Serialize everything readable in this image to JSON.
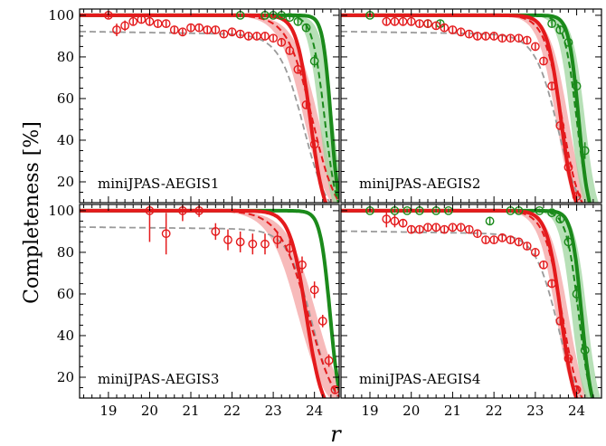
{
  "figure": {
    "ylabel": "Completeness [%]",
    "xlabel": "r"
  },
  "colors": {
    "red": "#e41a1c",
    "red_band": "#f4a3a3",
    "green": "#1b8a1b",
    "green_band": "#9fd59f",
    "gray": "#9a9a9a"
  },
  "chart_data": [
    {
      "type": "line",
      "panel": "miniJPAS-AEGIS1",
      "label": "miniJPAS-AEGIS1",
      "xlim": [
        18.3,
        24.6
      ],
      "ylim": [
        10,
        103
      ],
      "xticks": [
        19,
        20,
        21,
        22,
        23,
        24
      ],
      "yticks": [
        20,
        40,
        60,
        80,
        100
      ],
      "red_points": [
        {
          "x": 19.0,
          "y": 100,
          "err": 1.5
        },
        {
          "x": 19.2,
          "y": 93,
          "err": 3
        },
        {
          "x": 19.4,
          "y": 95,
          "err": 2.5
        },
        {
          "x": 19.6,
          "y": 97,
          "err": 1.5
        },
        {
          "x": 19.8,
          "y": 98,
          "err": 1.5
        },
        {
          "x": 20.0,
          "y": 97,
          "err": 2
        },
        {
          "x": 20.2,
          "y": 96,
          "err": 1.5
        },
        {
          "x": 20.4,
          "y": 96,
          "err": 1.5
        },
        {
          "x": 20.6,
          "y": 93,
          "err": 1.5
        },
        {
          "x": 20.8,
          "y": 92,
          "err": 1.5
        },
        {
          "x": 21.0,
          "y": 94,
          "err": 1.5
        },
        {
          "x": 21.2,
          "y": 94,
          "err": 1.5
        },
        {
          "x": 21.4,
          "y": 93,
          "err": 1.5
        },
        {
          "x": 21.6,
          "y": 93,
          "err": 1.5
        },
        {
          "x": 21.8,
          "y": 91,
          "err": 1.5
        },
        {
          "x": 22.0,
          "y": 92,
          "err": 1.5
        },
        {
          "x": 22.2,
          "y": 91,
          "err": 1.5
        },
        {
          "x": 22.4,
          "y": 90,
          "err": 1.5
        },
        {
          "x": 22.6,
          "y": 90,
          "err": 1.5
        },
        {
          "x": 22.8,
          "y": 90,
          "err": 1.5
        },
        {
          "x": 23.0,
          "y": 89,
          "err": 1.5
        },
        {
          "x": 23.2,
          "y": 87,
          "err": 1.5
        },
        {
          "x": 23.4,
          "y": 83,
          "err": 1.5
        },
        {
          "x": 23.6,
          "y": 74,
          "err": 2
        },
        {
          "x": 23.8,
          "y": 57,
          "err": 2
        },
        {
          "x": 24.0,
          "y": 38,
          "err": 2.5
        }
      ],
      "green_points": [
        {
          "x": 22.2,
          "y": 100,
          "err": 1
        },
        {
          "x": 22.8,
          "y": 100,
          "err": 1
        },
        {
          "x": 23.0,
          "y": 100,
          "err": 1
        },
        {
          "x": 23.2,
          "y": 100,
          "err": 1
        },
        {
          "x": 23.4,
          "y": 99,
          "err": 1
        },
        {
          "x": 23.6,
          "y": 97,
          "err": 1.5
        },
        {
          "x": 23.8,
          "y": 94,
          "err": 2
        },
        {
          "x": 24.0,
          "y": 78,
          "err": 3
        }
      ],
      "red_fit": {
        "m50": 23.9,
        "w": 0.17
      },
      "red_dash": {
        "m50": 23.95,
        "w": 0.3
      },
      "red_band": {
        "m50_lo": 23.75,
        "m50_hi": 24.1,
        "w": 0.3
      },
      "green_fit": {
        "m50": 24.4,
        "w": 0.1
      },
      "green_dash": {
        "m50": 24.25,
        "w": 0.15
      },
      "green_band": {
        "m50_lo": 24.12,
        "m50_hi": 24.45,
        "w": 0.15
      },
      "gray_dash": {
        "top": 92,
        "slope": 1.5,
        "m50": 23.75,
        "w": 0.3
      }
    },
    {
      "type": "line",
      "panel": "miniJPAS-AEGIS2",
      "label": "miniJPAS-AEGIS2",
      "xlim": [
        18.3,
        24.6
      ],
      "ylim": [
        10,
        103
      ],
      "xticks": [
        19,
        20,
        21,
        22,
        23,
        24
      ],
      "yticks": [
        20,
        40,
        60,
        80,
        100
      ],
      "red_points": [
        {
          "x": 19.4,
          "y": 97,
          "err": 1.5
        },
        {
          "x": 19.6,
          "y": 97,
          "err": 1.5
        },
        {
          "x": 19.8,
          "y": 97,
          "err": 1.5
        },
        {
          "x": 20.0,
          "y": 97,
          "err": 1.5
        },
        {
          "x": 20.2,
          "y": 96,
          "err": 1.5
        },
        {
          "x": 20.4,
          "y": 96,
          "err": 1.5
        },
        {
          "x": 20.6,
          "y": 95,
          "err": 1.5
        },
        {
          "x": 20.8,
          "y": 94,
          "err": 1.5
        },
        {
          "x": 21.0,
          "y": 93,
          "err": 1.5
        },
        {
          "x": 21.2,
          "y": 92,
          "err": 1.5
        },
        {
          "x": 21.4,
          "y": 91,
          "err": 1.5
        },
        {
          "x": 21.6,
          "y": 90,
          "err": 1.5
        },
        {
          "x": 21.8,
          "y": 90,
          "err": 1.5
        },
        {
          "x": 22.0,
          "y": 90,
          "err": 1.5
        },
        {
          "x": 22.2,
          "y": 89,
          "err": 1.5
        },
        {
          "x": 22.4,
          "y": 89,
          "err": 1.5
        },
        {
          "x": 22.6,
          "y": 89,
          "err": 1.5
        },
        {
          "x": 22.8,
          "y": 88,
          "err": 1.5
        },
        {
          "x": 23.0,
          "y": 85,
          "err": 1.5
        },
        {
          "x": 23.2,
          "y": 78,
          "err": 2
        },
        {
          "x": 23.4,
          "y": 66,
          "err": 2
        },
        {
          "x": 23.6,
          "y": 47,
          "err": 2
        },
        {
          "x": 23.8,
          "y": 27,
          "err": 2
        },
        {
          "x": 24.0,
          "y": 13,
          "err": 2
        }
      ],
      "green_points": [
        {
          "x": 19.0,
          "y": 100,
          "err": 1
        },
        {
          "x": 20.4,
          "y": 96,
          "err": 1.5
        },
        {
          "x": 20.7,
          "y": 96,
          "err": 1.5
        },
        {
          "x": 23.4,
          "y": 96,
          "err": 1.5
        },
        {
          "x": 23.6,
          "y": 93,
          "err": 2
        },
        {
          "x": 23.8,
          "y": 87,
          "err": 2
        },
        {
          "x": 24.0,
          "y": 66,
          "err": 3
        },
        {
          "x": 24.2,
          "y": 35,
          "err": 4
        }
      ],
      "red_fit": {
        "m50": 23.62,
        "w": 0.17
      },
      "red_dash": {
        "m50": 23.65,
        "w": 0.22
      },
      "red_band": {
        "m50_lo": 23.5,
        "m50_hi": 23.8,
        "w": 0.22
      },
      "green_fit": {
        "m50": 24.05,
        "w": 0.12
      },
      "green_dash": {
        "m50": 24.0,
        "w": 0.15
      },
      "green_band": {
        "m50_lo": 23.85,
        "m50_hi": 24.2,
        "w": 0.15
      },
      "gray_dash": {
        "top": 92,
        "slope": 1.5,
        "m50": 23.55,
        "w": 0.28
      }
    },
    {
      "type": "line",
      "panel": "miniJPAS-AEGIS3",
      "label": "miniJPAS-AEGIS3",
      "xlim": [
        18.3,
        24.6
      ],
      "ylim": [
        10,
        103
      ],
      "xticks": [
        19,
        20,
        21,
        22,
        23,
        24
      ],
      "yticks": [
        20,
        40,
        60,
        80,
        100
      ],
      "red_points": [
        {
          "x": 20.0,
          "y": 100,
          "err": 15
        },
        {
          "x": 20.4,
          "y": 89,
          "err": 10
        },
        {
          "x": 20.8,
          "y": 100,
          "err": 5
        },
        {
          "x": 21.2,
          "y": 100,
          "err": 3
        },
        {
          "x": 21.6,
          "y": 90,
          "err": 4
        },
        {
          "x": 21.9,
          "y": 86,
          "err": 5
        },
        {
          "x": 22.2,
          "y": 85,
          "err": 5
        },
        {
          "x": 22.5,
          "y": 84,
          "err": 5
        },
        {
          "x": 22.8,
          "y": 84,
          "err": 5
        },
        {
          "x": 23.1,
          "y": 86,
          "err": 4
        },
        {
          "x": 23.4,
          "y": 82,
          "err": 4
        },
        {
          "x": 23.7,
          "y": 74,
          "err": 4
        },
        {
          "x": 24.0,
          "y": 62,
          "err": 4
        },
        {
          "x": 24.2,
          "y": 47,
          "err": 3
        },
        {
          "x": 24.35,
          "y": 28,
          "err": 3
        },
        {
          "x": 24.5,
          "y": 14,
          "err": 2
        }
      ],
      "green_points": [],
      "red_fit": {
        "m50": 23.8,
        "w": 0.2
      },
      "red_dash": {
        "m50": 23.85,
        "w": 0.35
      },
      "red_band": {
        "m50_lo": 23.6,
        "m50_hi": 24.05,
        "w": 0.35
      },
      "green_fit": {
        "m50": 24.38,
        "w": 0.12
      },
      "green_dash": null,
      "green_band": null,
      "gray_dash": {
        "top": 92,
        "slope": 1.0,
        "m50": 23.95,
        "w": 0.3
      }
    },
    {
      "type": "line",
      "panel": "miniJPAS-AEGIS4",
      "label": "miniJPAS-AEGIS4",
      "xlim": [
        18.3,
        24.6
      ],
      "ylim": [
        10,
        103
      ],
      "xticks": [
        19,
        20,
        21,
        22,
        23,
        24
      ],
      "yticks": [
        20,
        40,
        60,
        80,
        100
      ],
      "red_points": [
        {
          "x": 19.4,
          "y": 96,
          "err": 4
        },
        {
          "x": 19.6,
          "y": 95,
          "err": 3
        },
        {
          "x": 19.8,
          "y": 94,
          "err": 2
        },
        {
          "x": 20.0,
          "y": 91,
          "err": 2
        },
        {
          "x": 20.2,
          "y": 91,
          "err": 1.5
        },
        {
          "x": 20.4,
          "y": 92,
          "err": 1.5
        },
        {
          "x": 20.6,
          "y": 92,
          "err": 1.5
        },
        {
          "x": 20.8,
          "y": 91,
          "err": 1.5
        },
        {
          "x": 21.0,
          "y": 92,
          "err": 1.5
        },
        {
          "x": 21.2,
          "y": 92,
          "err": 1.5
        },
        {
          "x": 21.4,
          "y": 91,
          "err": 1.5
        },
        {
          "x": 21.6,
          "y": 89,
          "err": 1.5
        },
        {
          "x": 21.8,
          "y": 86,
          "err": 1.5
        },
        {
          "x": 22.0,
          "y": 86,
          "err": 1.5
        },
        {
          "x": 22.2,
          "y": 87,
          "err": 1.5
        },
        {
          "x": 22.4,
          "y": 86,
          "err": 1.5
        },
        {
          "x": 22.6,
          "y": 85,
          "err": 1.5
        },
        {
          "x": 22.8,
          "y": 83,
          "err": 1.5
        },
        {
          "x": 23.0,
          "y": 80,
          "err": 1.5
        },
        {
          "x": 23.2,
          "y": 74,
          "err": 2
        },
        {
          "x": 23.4,
          "y": 65,
          "err": 2
        },
        {
          "x": 23.6,
          "y": 47,
          "err": 2
        },
        {
          "x": 23.8,
          "y": 29,
          "err": 2
        },
        {
          "x": 24.0,
          "y": 14,
          "err": 2
        }
      ],
      "green_points": [
        {
          "x": 19.0,
          "y": 100,
          "err": 1
        },
        {
          "x": 19.6,
          "y": 100,
          "err": 1
        },
        {
          "x": 19.9,
          "y": 100,
          "err": 1
        },
        {
          "x": 20.2,
          "y": 100,
          "err": 1
        },
        {
          "x": 20.6,
          "y": 100,
          "err": 1
        },
        {
          "x": 20.9,
          "y": 100,
          "err": 1
        },
        {
          "x": 21.9,
          "y": 95,
          "err": 2
        },
        {
          "x": 22.4,
          "y": 100,
          "err": 1
        },
        {
          "x": 22.6,
          "y": 100,
          "err": 1
        },
        {
          "x": 23.1,
          "y": 100,
          "err": 1
        },
        {
          "x": 23.4,
          "y": 99,
          "err": 1
        },
        {
          "x": 23.6,
          "y": 96,
          "err": 1.5
        },
        {
          "x": 23.8,
          "y": 85,
          "err": 3
        },
        {
          "x": 24.0,
          "y": 60,
          "err": 4
        },
        {
          "x": 24.2,
          "y": 33,
          "err": 4
        }
      ],
      "red_fit": {
        "m50": 23.62,
        "w": 0.17
      },
      "red_dash": {
        "m50": 23.65,
        "w": 0.22
      },
      "red_band": {
        "m50_lo": 23.5,
        "m50_hi": 23.8,
        "w": 0.22
      },
      "green_fit": {
        "m50": 24.12,
        "w": 0.12
      },
      "green_dash": {
        "m50": 24.05,
        "w": 0.15
      },
      "green_band": {
        "m50_lo": 23.88,
        "m50_hi": 24.25,
        "w": 0.15
      },
      "gray_dash": {
        "top": 90,
        "slope": 1.5,
        "m50": 23.55,
        "w": 0.28
      }
    }
  ]
}
